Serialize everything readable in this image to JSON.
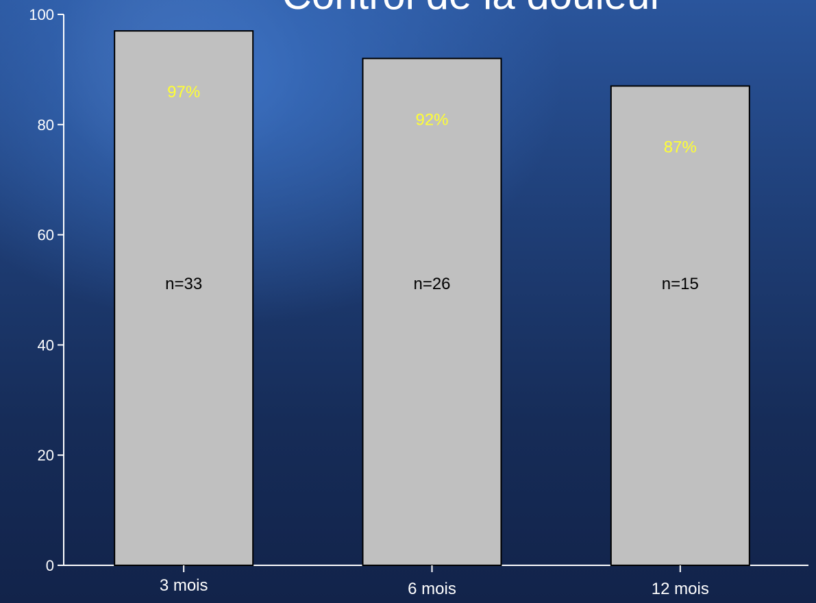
{
  "title": "Contrôl de la douleur",
  "chart_data": {
    "type": "bar",
    "categories": [
      "3 mois",
      "6 mois",
      "12 mois"
    ],
    "values": [
      97,
      92,
      87
    ],
    "value_labels": [
      "97%",
      "92%",
      "87%"
    ],
    "n_labels": [
      "n=33",
      "n=26",
      "n=15"
    ],
    "ylim": [
      0,
      100
    ],
    "yticks": [
      0,
      20,
      40,
      60,
      80,
      100
    ],
    "bar_color": "#c0c0c0",
    "value_label_color": "#ffff33",
    "grid": false
  }
}
